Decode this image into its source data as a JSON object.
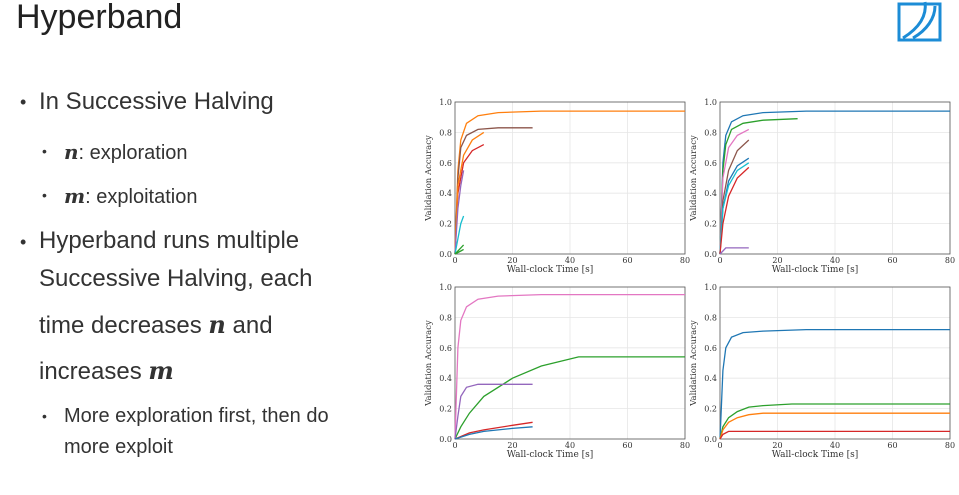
{
  "slide": {
    "title": "Hyperband",
    "bullets": {
      "b1": "In Successive Halving",
      "b1a_var": "n",
      "b1a_text": ": exploration",
      "b1b_var": "m",
      "b1b_text": ": exploitation",
      "b2_line1": "Hyperband runs multiple",
      "b2_line2": "Successive Halving, each",
      "b2_line3_pre": "time decreases ",
      "b2_line3_var": "n",
      "b2_line3_post": " and",
      "b2_line4_pre": "increases ",
      "b2_line4_var": "m",
      "b2a_line1": "More exploration first, then do",
      "b2a_line2": "more exploit"
    }
  },
  "chart_data": [
    {
      "type": "line",
      "xlabel": "Wall-clock Time [s]",
      "ylabel": "Validation Accuracy",
      "xlim": [
        0,
        80
      ],
      "ylim": [
        0,
        1.0
      ],
      "xticks": [
        20,
        40,
        60,
        80
      ],
      "yticks": [
        0.0,
        0.2,
        0.4,
        0.6,
        0.8,
        1.0
      ],
      "grid": true,
      "series": [
        {
          "color": "#ff7f0e",
          "x": [
            0,
            1,
            2,
            4,
            8,
            15,
            30,
            50,
            80
          ],
          "y": [
            0,
            0.55,
            0.75,
            0.86,
            0.91,
            0.93,
            0.94,
            0.94,
            0.94
          ]
        },
        {
          "color": "#8c564b",
          "x": [
            0,
            1,
            2,
            4,
            8,
            15,
            27
          ],
          "y": [
            0,
            0.5,
            0.7,
            0.78,
            0.82,
            0.83,
            0.83
          ]
        },
        {
          "color": "#d62728",
          "x": [
            0,
            1,
            3,
            6,
            10
          ],
          "y": [
            0,
            0.4,
            0.6,
            0.68,
            0.72
          ]
        },
        {
          "color": "#ff7f0e",
          "x": [
            0,
            1,
            3,
            6,
            10
          ],
          "y": [
            0,
            0.45,
            0.65,
            0.75,
            0.8
          ]
        },
        {
          "color": "#9467bd",
          "x": [
            0,
            1,
            2,
            3
          ],
          "y": [
            0,
            0.3,
            0.45,
            0.55
          ]
        },
        {
          "color": "#17becf",
          "x": [
            0,
            1,
            2,
            3
          ],
          "y": [
            0,
            0.1,
            0.2,
            0.25
          ]
        },
        {
          "color": "#2ca02c",
          "x": [
            0,
            1,
            2,
            3
          ],
          "y": [
            0,
            0.02,
            0.04,
            0.06
          ]
        },
        {
          "color": "#2ca02c",
          "x": [
            0,
            1,
            2,
            3
          ],
          "y": [
            0,
            0.01,
            0.02,
            0.03
          ]
        }
      ]
    },
    {
      "type": "line",
      "xlabel": "Wall-clock Time [s]",
      "ylabel": "Validation Accuracy",
      "xlim": [
        0,
        80
      ],
      "ylim": [
        0,
        1.0
      ],
      "xticks": [
        20,
        40,
        60,
        80
      ],
      "yticks": [
        0.0,
        0.2,
        0.4,
        0.6,
        0.8,
        1.0
      ],
      "grid": true,
      "series": [
        {
          "color": "#1f77b4",
          "x": [
            0,
            1,
            2,
            4,
            8,
            15,
            30,
            50,
            80
          ],
          "y": [
            0,
            0.6,
            0.78,
            0.87,
            0.91,
            0.93,
            0.94,
            0.94,
            0.94
          ]
        },
        {
          "color": "#2ca02c",
          "x": [
            0,
            1,
            2,
            4,
            8,
            15,
            27
          ],
          "y": [
            0,
            0.55,
            0.72,
            0.82,
            0.86,
            0.88,
            0.89
          ]
        },
        {
          "color": "#e377c2",
          "x": [
            0,
            1,
            3,
            6,
            10
          ],
          "y": [
            0,
            0.5,
            0.7,
            0.78,
            0.82
          ]
        },
        {
          "color": "#8c564b",
          "x": [
            0,
            1,
            3,
            6,
            10
          ],
          "y": [
            0,
            0.35,
            0.55,
            0.68,
            0.75
          ]
        },
        {
          "color": "#1f77b4",
          "x": [
            0,
            1,
            3,
            6,
            10
          ],
          "y": [
            0,
            0.3,
            0.48,
            0.58,
            0.63
          ]
        },
        {
          "color": "#17becf",
          "x": [
            0,
            1,
            3,
            6,
            10
          ],
          "y": [
            0,
            0.3,
            0.45,
            0.55,
            0.6
          ]
        },
        {
          "color": "#d62728",
          "x": [
            0,
            1,
            3,
            6,
            10
          ],
          "y": [
            0,
            0.2,
            0.38,
            0.5,
            0.57
          ]
        },
        {
          "color": "#9467bd",
          "x": [
            0,
            1,
            2,
            5,
            10
          ],
          "y": [
            0,
            0.02,
            0.04,
            0.04,
            0.04
          ]
        }
      ]
    },
    {
      "type": "line",
      "xlabel": "Wall-clock Time [s]",
      "ylabel": "Validation Accuracy",
      "xlim": [
        0,
        80
      ],
      "ylim": [
        0,
        1.0
      ],
      "xticks": [
        20,
        40,
        60,
        80
      ],
      "yticks": [
        0.0,
        0.2,
        0.4,
        0.6,
        0.8,
        1.0
      ],
      "grid": true,
      "series": [
        {
          "color": "#e377c2",
          "x": [
            0,
            1,
            2,
            4,
            8,
            15,
            30,
            50,
            80
          ],
          "y": [
            0,
            0.6,
            0.78,
            0.87,
            0.92,
            0.94,
            0.95,
            0.95,
            0.95
          ]
        },
        {
          "color": "#2ca02c",
          "x": [
            0,
            2,
            5,
            10,
            20,
            30,
            43,
            60,
            80
          ],
          "y": [
            0,
            0.08,
            0.17,
            0.28,
            0.4,
            0.48,
            0.54,
            0.54,
            0.54
          ]
        },
        {
          "color": "#9467bd",
          "x": [
            0,
            1,
            2,
            4,
            8,
            15,
            27
          ],
          "y": [
            0,
            0.15,
            0.28,
            0.34,
            0.36,
            0.36,
            0.36
          ]
        },
        {
          "color": "#d62728",
          "x": [
            0,
            5,
            10,
            20,
            27
          ],
          "y": [
            0,
            0.04,
            0.06,
            0.09,
            0.11
          ]
        },
        {
          "color": "#1f77b4",
          "x": [
            0,
            5,
            10,
            20,
            27
          ],
          "y": [
            0,
            0.03,
            0.05,
            0.07,
            0.08
          ]
        }
      ]
    },
    {
      "type": "line",
      "xlabel": "Wall-clock Time [s]",
      "ylabel": "Validation Accuracy",
      "xlim": [
        0,
        80
      ],
      "ylim": [
        0,
        1.0
      ],
      "xticks": [
        20,
        40,
        60,
        80
      ],
      "yticks": [
        0.0,
        0.2,
        0.4,
        0.6,
        0.8,
        1.0
      ],
      "grid": true,
      "series": [
        {
          "color": "#1f77b4",
          "x": [
            0,
            1,
            2,
            4,
            8,
            15,
            30,
            50,
            80
          ],
          "y": [
            0,
            0.45,
            0.6,
            0.67,
            0.7,
            0.71,
            0.72,
            0.72,
            0.72
          ]
        },
        {
          "color": "#2ca02c",
          "x": [
            0,
            1,
            3,
            6,
            10,
            15,
            25,
            40,
            80
          ],
          "y": [
            0,
            0.08,
            0.14,
            0.18,
            0.21,
            0.22,
            0.23,
            0.23,
            0.23
          ]
        },
        {
          "color": "#ff7f0e",
          "x": [
            0,
            1,
            3,
            6,
            10,
            15,
            25,
            40,
            80
          ],
          "y": [
            0,
            0.06,
            0.11,
            0.14,
            0.16,
            0.17,
            0.17,
            0.17,
            0.17
          ]
        },
        {
          "color": "#d62728",
          "x": [
            0,
            1,
            3,
            10,
            80
          ],
          "y": [
            0,
            0.03,
            0.05,
            0.05,
            0.05
          ]
        }
      ]
    }
  ]
}
